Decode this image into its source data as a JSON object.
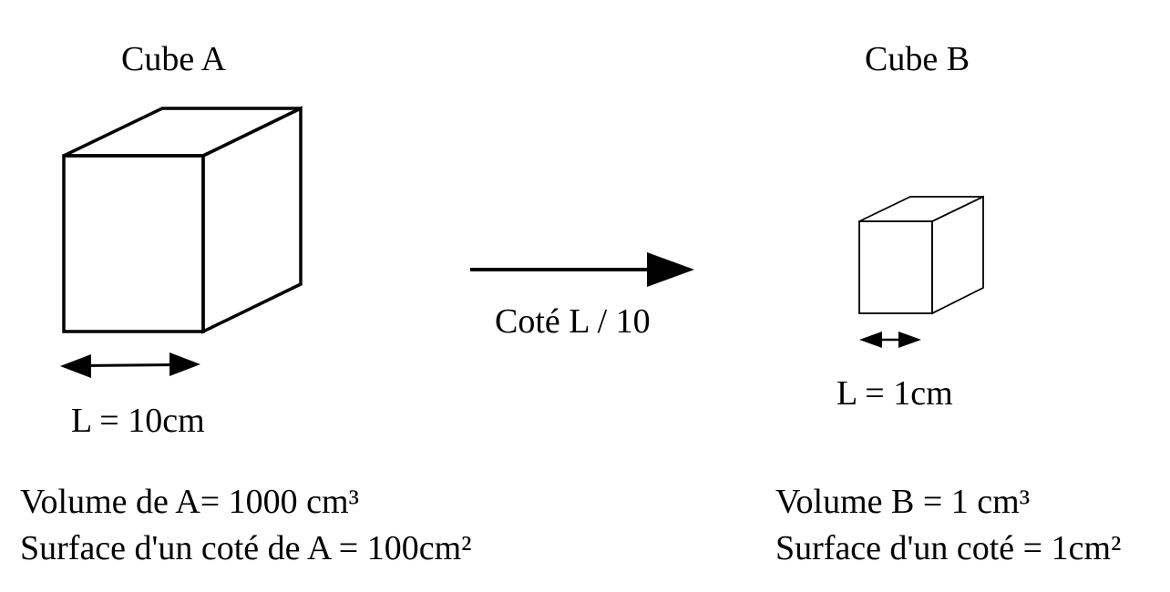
{
  "cube_a": {
    "title": "Cube A",
    "length_label": "L = 10cm",
    "volume_text": "Volume de A= 1000 cm³",
    "surface_text": "Surface d'un coté de A = 100cm²"
  },
  "transform": {
    "label": "Coté L / 10"
  },
  "cube_b": {
    "title": "Cube B",
    "length_label": "L = 1cm",
    "volume_text": "Volume B = 1 cm³",
    "surface_text": "Surface d'un coté = 1cm²"
  }
}
